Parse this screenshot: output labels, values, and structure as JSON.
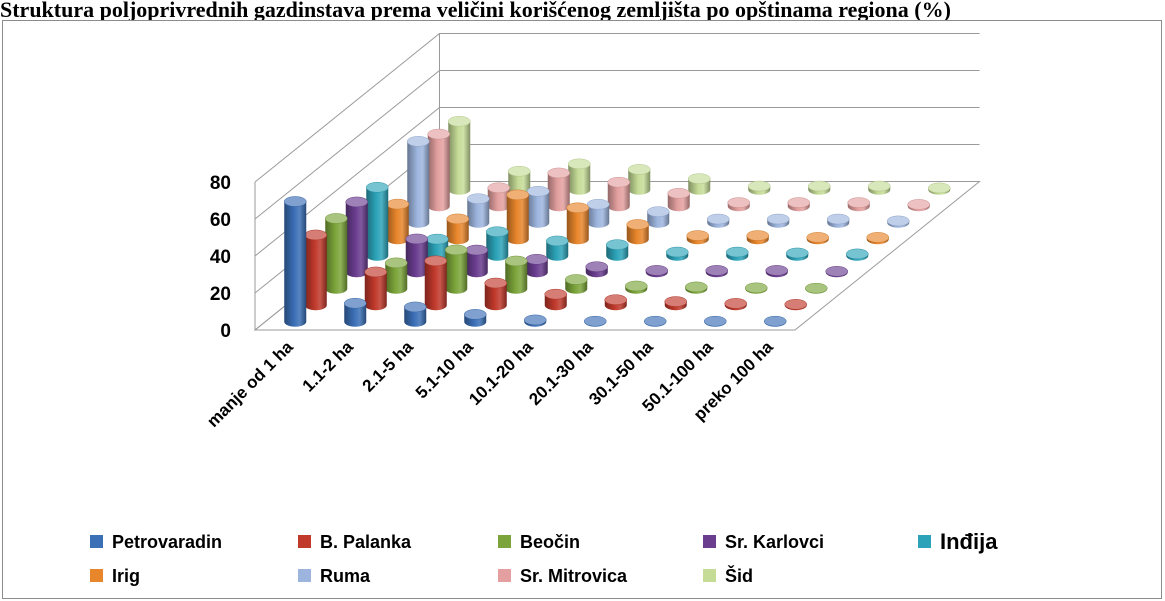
{
  "header": {
    "title": "Struktura poljoprivrednih gazdinstava prema veličini korišćenog zemljišta po opštinama regiona (%)"
  },
  "chart_data": {
    "type": "bar",
    "style": "3d-column",
    "title": "",
    "xlabel": "",
    "ylabel": "",
    "ylim": [
      0,
      80
    ],
    "yticks": [
      "0",
      "20",
      "40",
      "60",
      "80"
    ],
    "grid": true,
    "legend_position": "bottom",
    "categories": [
      "manje od 1 ha",
      "1.1-2 ha",
      "2.1-5 ha",
      "5.1-10 ha",
      "10.1-20 ha",
      "20.1-30 ha",
      "30.1-50 ha",
      "50.1-100 ha",
      "preko 100  ha"
    ],
    "series": [
      {
        "name": "Petrovaradin",
        "color": "#3b6fb6",
        "values": [
          65,
          10,
          8,
          4,
          1,
          0.3,
          0.3,
          0.3,
          0.3
        ]
      },
      {
        "name": "B. Palanka",
        "color": "#c0392b",
        "values": [
          38,
          18,
          24,
          12,
          6,
          3,
          2,
          1,
          0.5
        ]
      },
      {
        "name": "Beočin",
        "color": "#7ba43a",
        "values": [
          38,
          14,
          21,
          15,
          5,
          1.5,
          1,
          0.5,
          0.3
        ]
      },
      {
        "name": "Sr. Karlovci",
        "color": "#6a3d8f",
        "values": [
          38,
          18,
          12,
          7,
          3,
          1,
          1,
          1,
          0.5
        ]
      },
      {
        "name": "Inđija",
        "color": "#2ca3b8",
        "values": [
          37,
          9,
          13,
          8,
          6,
          2,
          2,
          1.5,
          1
        ]
      },
      {
        "name": "Irig",
        "color": "#e8862b",
        "values": [
          19,
          11,
          24,
          17,
          8,
          2,
          2,
          1,
          1
        ]
      },
      {
        "name": "Ruma",
        "color": "#9db5de",
        "values": [
          44,
          13,
          17,
          10,
          6,
          2,
          2,
          2,
          1
        ]
      },
      {
        "name": "Sr. Mitrovica",
        "color": "#e4a0a0",
        "values": [
          39,
          10,
          18,
          13,
          7,
          2,
          2,
          2,
          1
        ]
      },
      {
        "name": "Šid",
        "color": "#c5dc97",
        "values": [
          37,
          10,
          14,
          11,
          6,
          2,
          2,
          2,
          1
        ]
      }
    ]
  }
}
